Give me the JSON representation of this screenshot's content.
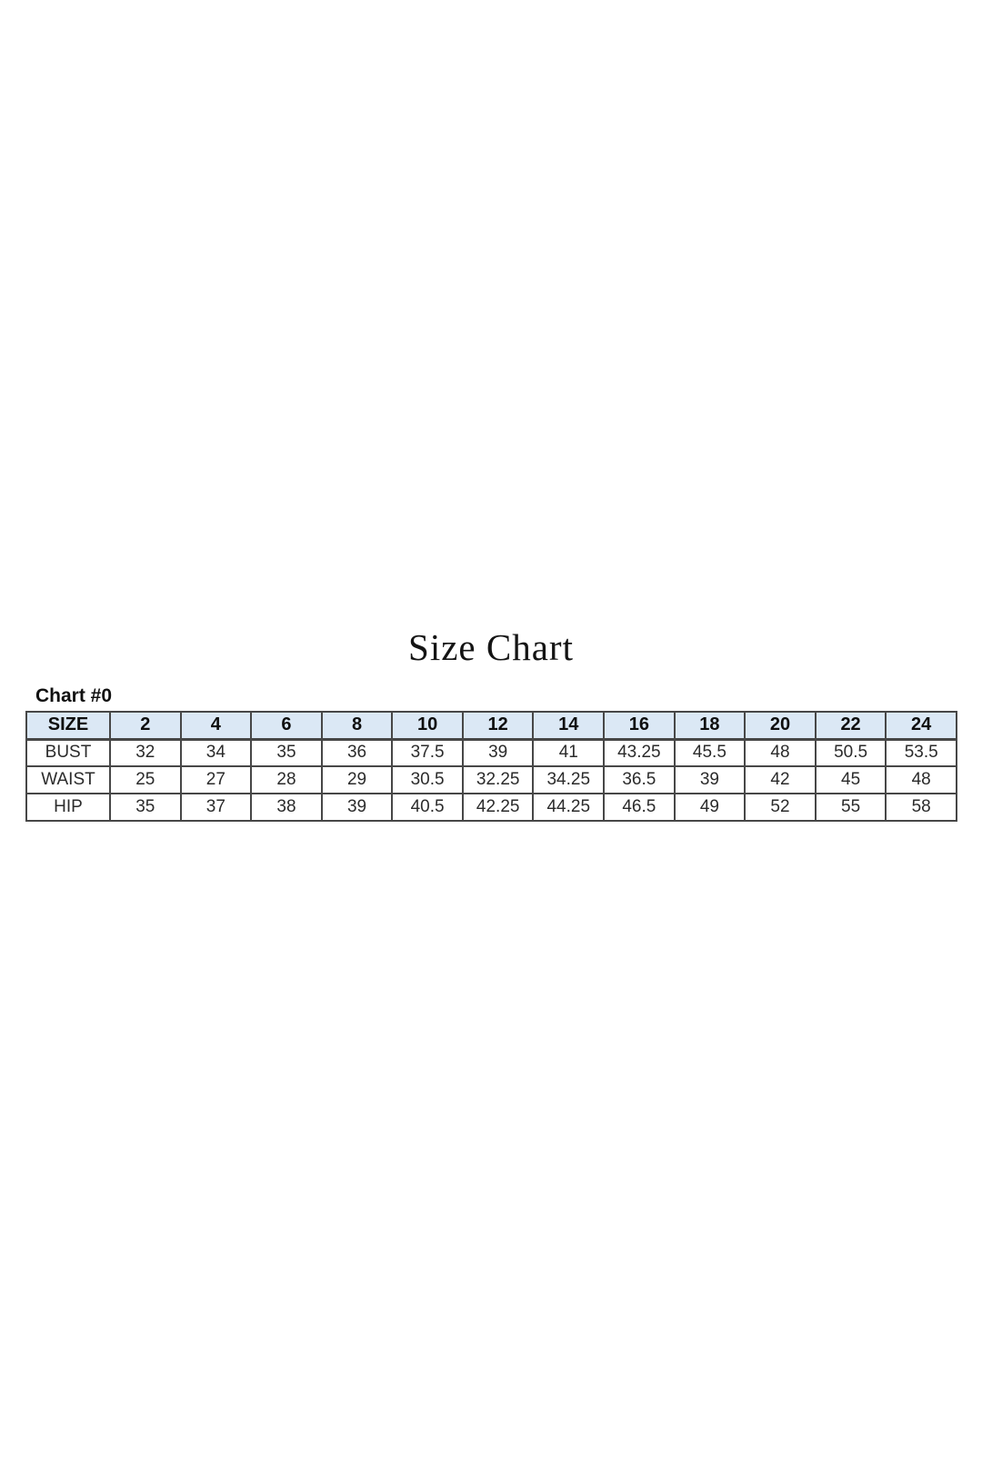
{
  "page": {
    "title": "Size Chart",
    "chart_label": "Chart #0",
    "background_color": "#ffffff"
  },
  "table": {
    "header_bg_color": "#dbe8f5",
    "border_color": "#474747",
    "columns": [
      "SIZE",
      "2",
      "4",
      "6",
      "8",
      "10",
      "12",
      "14",
      "16",
      "18",
      "20",
      "22",
      "24"
    ],
    "rows": [
      {
        "label": "BUST",
        "values": [
          "32",
          "34",
          "35",
          "36",
          "37.5",
          "39",
          "41",
          "43.25",
          "45.5",
          "48",
          "50.5",
          "53.5"
        ]
      },
      {
        "label": "WAIST",
        "values": [
          "25",
          "27",
          "28",
          "29",
          "30.5",
          "32.25",
          "34.25",
          "36.5",
          "39",
          "42",
          "45",
          "48"
        ]
      },
      {
        "label": "HIP",
        "values": [
          "35",
          "37",
          "38",
          "39",
          "40.5",
          "42.25",
          "44.25",
          "46.5",
          "49",
          "52",
          "55",
          "58"
        ]
      }
    ]
  },
  "chart_data": {
    "type": "table",
    "title": "Size Chart",
    "subtitle": "Chart #0",
    "categories": [
      2,
      4,
      6,
      8,
      10,
      12,
      14,
      16,
      18,
      20,
      22,
      24
    ],
    "categories_label": "SIZE",
    "series": [
      {
        "name": "BUST",
        "values": [
          32,
          34,
          35,
          36,
          37.5,
          39,
          41,
          43.25,
          45.5,
          48,
          50.5,
          53.5
        ]
      },
      {
        "name": "WAIST",
        "values": [
          25,
          27,
          28,
          29,
          30.5,
          32.25,
          34.25,
          36.5,
          39,
          42,
          45,
          48
        ]
      },
      {
        "name": "HIP",
        "values": [
          35,
          37,
          38,
          39,
          40.5,
          42.25,
          44.25,
          46.5,
          49,
          52,
          55,
          58
        ]
      }
    ],
    "layout": {
      "header_row": "size numbers across top",
      "first_column": "measurement name",
      "header_fill": "#dbe8f5",
      "grid": "on"
    }
  }
}
